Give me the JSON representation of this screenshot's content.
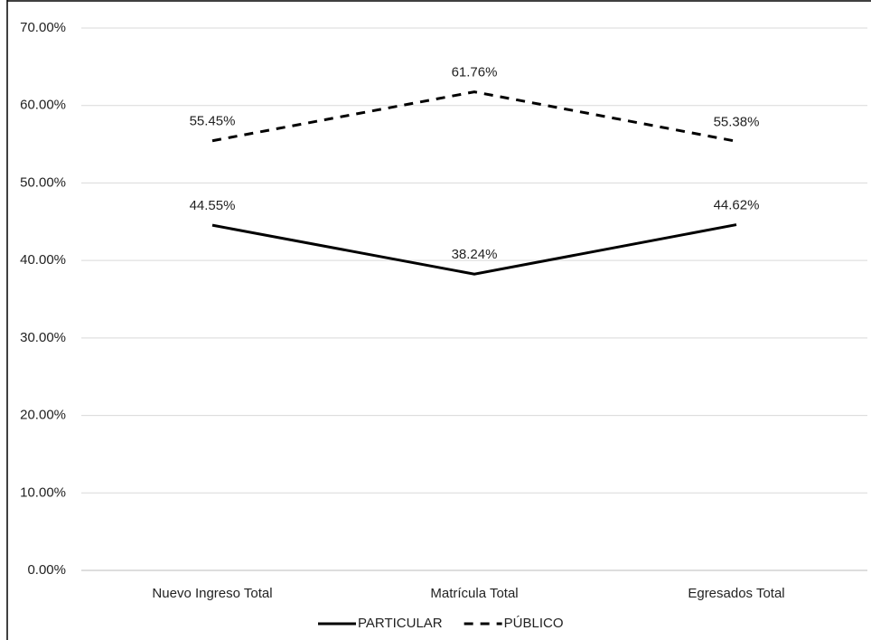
{
  "chart_data": {
    "type": "line",
    "categories": [
      "Nuevo Ingreso Total",
      "Matrícula Total",
      "Egresados Total"
    ],
    "series": [
      {
        "name": "PARTICULAR",
        "color": "#000000",
        "line_style": "solid",
        "values": [
          44.55,
          38.24,
          44.62
        ],
        "value_labels": [
          "44.55%",
          "38.24%",
          "44.62%"
        ]
      },
      {
        "name": "PÚBLICO",
        "color": "#000000",
        "line_style": "dashed",
        "values": [
          55.45,
          61.76,
          55.38
        ],
        "value_labels": [
          "55.45%",
          "61.76%",
          "55.38%"
        ]
      }
    ],
    "ylim": [
      0,
      70
    ],
    "yticks": [
      {
        "value": 0,
        "label": "0.00%"
      },
      {
        "value": 10,
        "label": "10.00%"
      },
      {
        "value": 20,
        "label": "20.00%"
      },
      {
        "value": 30,
        "label": "30.00%"
      },
      {
        "value": 40,
        "label": "40.00%"
      },
      {
        "value": 50,
        "label": "50.00%"
      },
      {
        "value": 60,
        "label": "60.00%"
      },
      {
        "value": 70,
        "label": "70.00%"
      }
    ],
    "grid": true,
    "legend": "bottom"
  }
}
